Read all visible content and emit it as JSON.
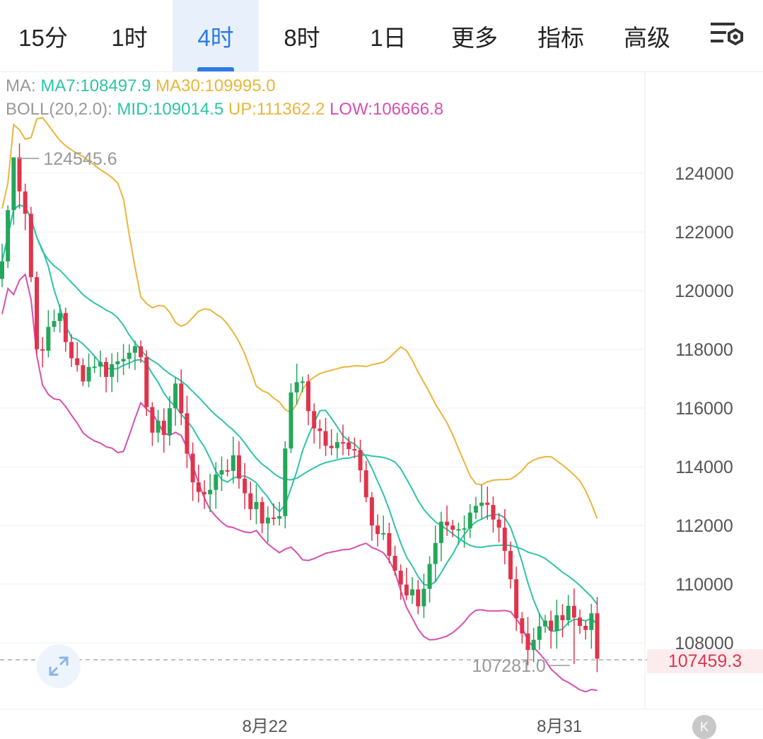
{
  "tabs": [
    {
      "label": "15分",
      "active": false,
      "dropdown": false
    },
    {
      "label": "1时",
      "active": false,
      "dropdown": false
    },
    {
      "label": "4时",
      "active": true,
      "dropdown": false
    },
    {
      "label": "8时",
      "active": false,
      "dropdown": false
    },
    {
      "label": "1日",
      "active": false,
      "dropdown": false
    },
    {
      "label": "更多",
      "active": false,
      "dropdown": true
    },
    {
      "label": "指标",
      "active": false,
      "dropdown": true
    },
    {
      "label": "高级",
      "active": false,
      "dropdown": true
    }
  ],
  "settings_icon": "chart-settings-icon",
  "legend": {
    "ma": {
      "prefix": "MA:",
      "items": [
        {
          "label": "MA7:108497.9",
          "color": "#2ec4a6"
        },
        {
          "label": "MA30:109995.0",
          "color": "#eab53a"
        }
      ]
    },
    "boll": {
      "prefix": "BOLL(20,2.0):",
      "items": [
        {
          "label": "MID:109014.5",
          "color": "#2ec4a6"
        },
        {
          "label": "UP:111362.2",
          "color": "#eab53a"
        },
        {
          "label": "LOW:106666.8",
          "color": "#d64fb0"
        }
      ]
    }
  },
  "colors": {
    "up": "#24a65b",
    "down": "#e0344c",
    "grid": "#efefef",
    "axis_text": "#555555"
  },
  "current_price_label": "107459.3",
  "expand_icon": "expand-icon",
  "k_icon": "k-logo-icon",
  "k_label": "K",
  "chart_data": {
    "type": "candlestick",
    "interval": "4时",
    "y_ticks": [
      124000,
      122000,
      120000,
      118000,
      116000,
      114000,
      112000,
      110000,
      108000
    ],
    "ylim": [
      106000,
      126500
    ],
    "x_ticks": [
      {
        "label": "8月22",
        "index": 44
      },
      {
        "label": "8月31",
        "index": 95
      }
    ],
    "annotations": {
      "max": {
        "label": "124545.6",
        "value": 124545.6
      },
      "min": {
        "label": "107281.0",
        "value": 107281.0
      }
    },
    "current_price": 107459.3,
    "anchors": [
      {
        "i": 0,
        "c": 121000
      },
      {
        "i": 2,
        "c": 124500
      },
      {
        "i": 4,
        "c": 122800
      },
      {
        "i": 5,
        "c": 120500
      },
      {
        "i": 6,
        "c": 118000
      },
      {
        "i": 8,
        "c": 118500
      },
      {
        "i": 10,
        "c": 119300
      },
      {
        "i": 12,
        "c": 117500
      },
      {
        "i": 14,
        "c": 117200
      },
      {
        "i": 16,
        "c": 117600
      },
      {
        "i": 18,
        "c": 117300
      },
      {
        "i": 20,
        "c": 117600
      },
      {
        "i": 22,
        "c": 118200
      },
      {
        "i": 24,
        "c": 117400
      },
      {
        "i": 26,
        "c": 115200
      },
      {
        "i": 28,
        "c": 115300
      },
      {
        "i": 30,
        "c": 116800
      },
      {
        "i": 32,
        "c": 114600
      },
      {
        "i": 34,
        "c": 112800
      },
      {
        "i": 36,
        "c": 113400
      },
      {
        "i": 38,
        "c": 114000
      },
      {
        "i": 40,
        "c": 114200
      },
      {
        "i": 42,
        "c": 113200
      },
      {
        "i": 44,
        "c": 112500
      },
      {
        "i": 46,
        "c": 112000
      },
      {
        "i": 48,
        "c": 112500
      },
      {
        "i": 50,
        "c": 116600
      },
      {
        "i": 52,
        "c": 116800
      },
      {
        "i": 54,
        "c": 115500
      },
      {
        "i": 56,
        "c": 115000
      },
      {
        "i": 58,
        "c": 114900
      },
      {
        "i": 60,
        "c": 114500
      },
      {
        "i": 62,
        "c": 114000
      },
      {
        "i": 64,
        "c": 112000
      },
      {
        "i": 66,
        "c": 111500
      },
      {
        "i": 68,
        "c": 110500
      },
      {
        "i": 70,
        "c": 109800
      },
      {
        "i": 72,
        "c": 109500
      },
      {
        "i": 74,
        "c": 110500
      },
      {
        "i": 76,
        "c": 111800
      },
      {
        "i": 78,
        "c": 111600
      },
      {
        "i": 80,
        "c": 111800
      },
      {
        "i": 82,
        "c": 113000
      },
      {
        "i": 84,
        "c": 112800
      },
      {
        "i": 86,
        "c": 112000
      },
      {
        "i": 88,
        "c": 110000
      },
      {
        "i": 90,
        "c": 108000
      },
      {
        "i": 92,
        "c": 108200
      },
      {
        "i": 94,
        "c": 108800
      },
      {
        "i": 96,
        "c": 108600
      },
      {
        "i": 98,
        "c": 109000
      },
      {
        "i": 100,
        "c": 108600
      },
      {
        "i": 102,
        "c": 108800
      },
      {
        "i": 103,
        "c": 107459.3
      }
    ]
  }
}
